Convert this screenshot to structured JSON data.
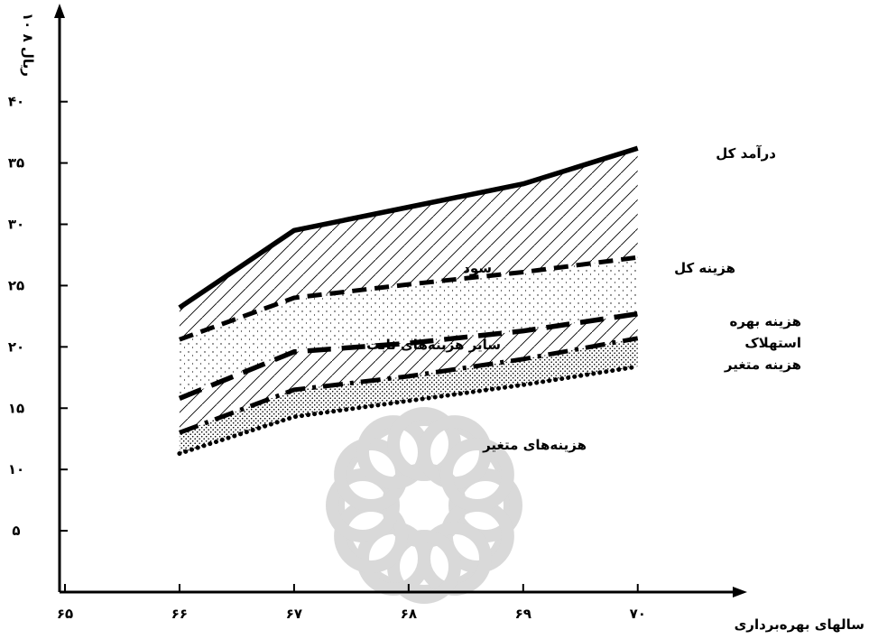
{
  "chart_data": {
    "type": "area",
    "ylabel": "۱۰ ۸ ریال",
    "xlabel": "سالهای بهره‌برداری",
    "x": [
      66,
      67,
      68,
      69,
      70
    ],
    "x_tick_labels": [
      "۶۵",
      "۶۶",
      "۶۷",
      "۶۸",
      "۶۹",
      "۷۰"
    ],
    "x_tick_values": [
      65,
      66,
      67,
      68,
      69,
      70
    ],
    "y_tick_labels": [
      "۵",
      "۱۰",
      "۱۵",
      "۲۰",
      "۲۵",
      "۳۰",
      "۳۵",
      "۴۰"
    ],
    "y_tick_values": [
      5,
      10,
      15,
      20,
      25,
      30,
      35,
      40
    ],
    "xlim": [
      65,
      70.9
    ],
    "ylim": [
      0,
      48
    ],
    "grid": false,
    "watermark": "circular-rosette-logo",
    "series": [
      {
        "name": "درآمد کل",
        "style": "solid-thick",
        "values": [
          23.2,
          29.5,
          31.4,
          33.3,
          36.2
        ]
      },
      {
        "name": "هزینه کل",
        "style": "short-dash",
        "values": [
          20.6,
          24.0,
          25.1,
          26.1,
          27.3
        ]
      },
      {
        "name": "هزینه بهره",
        "style": "long-dash",
        "values": [
          15.8,
          19.6,
          20.3,
          21.3,
          22.7
        ]
      },
      {
        "name": "هزینه متغیر",
        "style": "dash-dot",
        "values": [
          13.0,
          16.5,
          17.6,
          19.0,
          20.7
        ]
      },
      {
        "name": "هزینه‌های متغیر",
        "style": "dotted",
        "values": [
          11.3,
          14.3,
          15.6,
          16.9,
          18.4
        ]
      }
    ],
    "annotations": [
      {
        "text": "درآمد کل"
      },
      {
        "text": "سود"
      },
      {
        "text": "هزینه کل"
      },
      {
        "text": "سایر هزینه‌های ثابت"
      },
      {
        "text": "هزینه بهره"
      },
      {
        "text": "استهلاک"
      },
      {
        "text": "هزینه متغیر"
      },
      {
        "text": "هزینه‌های متغیر"
      }
    ]
  }
}
